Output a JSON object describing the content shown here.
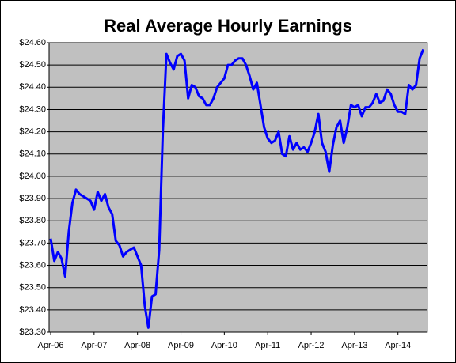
{
  "chart_data": {
    "type": "line",
    "title": "Real Average Hourly Earnings",
    "categories": [
      "Apr-06",
      null,
      null,
      null,
      null,
      null,
      null,
      null,
      null,
      null,
      null,
      null,
      "Apr-07",
      null,
      null,
      null,
      null,
      null,
      null,
      null,
      null,
      null,
      null,
      null,
      "Apr-08",
      null,
      null,
      null,
      null,
      null,
      null,
      null,
      null,
      null,
      null,
      null,
      "Apr-09",
      null,
      null,
      null,
      null,
      null,
      null,
      null,
      null,
      null,
      null,
      null,
      "Apr-10",
      null,
      null,
      null,
      null,
      null,
      null,
      null,
      null,
      null,
      null,
      null,
      "Apr-11",
      null,
      null,
      null,
      null,
      null,
      null,
      null,
      null,
      null,
      null,
      null,
      "Apr-12",
      null,
      null,
      null,
      null,
      null,
      null,
      null,
      null,
      null,
      null,
      null,
      "Apr-13",
      null,
      null,
      null,
      null,
      null,
      null,
      null,
      null,
      null,
      null,
      null,
      "Apr-14",
      null,
      null,
      null,
      null,
      null,
      null,
      null
    ],
    "series": [
      {
        "color": "#0000ff",
        "values": [
          23.72,
          23.62,
          23.66,
          23.63,
          23.55,
          23.75,
          23.88,
          23.94,
          23.92,
          23.91,
          23.9,
          23.89,
          23.85,
          23.93,
          23.89,
          23.92,
          23.86,
          23.83,
          23.71,
          23.69,
          23.64,
          23.66,
          23.67,
          23.68,
          23.64,
          23.6,
          23.42,
          23.32,
          23.46,
          23.47,
          23.67,
          24.2,
          24.55,
          24.51,
          24.48,
          24.54,
          24.55,
          24.52,
          24.35,
          24.41,
          24.4,
          24.36,
          24.35,
          24.32,
          24.32,
          24.35,
          24.4,
          24.42,
          24.44,
          24.5,
          24.5,
          24.52,
          24.53,
          24.53,
          24.5,
          24.45,
          24.39,
          24.42,
          24.32,
          24.22,
          24.17,
          24.15,
          24.16,
          24.2,
          24.1,
          24.09,
          24.18,
          24.12,
          24.15,
          24.12,
          24.13,
          24.11,
          24.15,
          24.2,
          24.28,
          24.15,
          24.11,
          24.02,
          24.14,
          24.22,
          24.25,
          24.15,
          24.22,
          24.32,
          24.31,
          24.32,
          24.27,
          24.31,
          24.31,
          24.33,
          24.37,
          24.33,
          24.34,
          24.39,
          24.37,
          24.32,
          24.29,
          24.29,
          24.28,
          24.41,
          24.39,
          24.41,
          24.53,
          24.57
        ]
      }
    ],
    "ylim": [
      23.3,
      24.6
    ],
    "yticks": [
      {
        "value": 23.3,
        "label": "$23.30"
      },
      {
        "value": 23.4,
        "label": "$23.40"
      },
      {
        "value": 23.5,
        "label": "$23.50"
      },
      {
        "value": 23.6,
        "label": "$23.60"
      },
      {
        "value": 23.7,
        "label": "$23.70"
      },
      {
        "value": 23.8,
        "label": "$23.80"
      },
      {
        "value": 23.9,
        "label": "$23.90"
      },
      {
        "value": 24.0,
        "label": "$24.00"
      },
      {
        "value": 24.1,
        "label": "$24.10"
      },
      {
        "value": 24.2,
        "label": "$24.20"
      },
      {
        "value": 24.3,
        "label": "$24.30"
      },
      {
        "value": 24.4,
        "label": "$24.40"
      },
      {
        "value": 24.5,
        "label": "$24.50"
      },
      {
        "value": 24.6,
        "label": "$24.60"
      }
    ],
    "grid": true
  }
}
